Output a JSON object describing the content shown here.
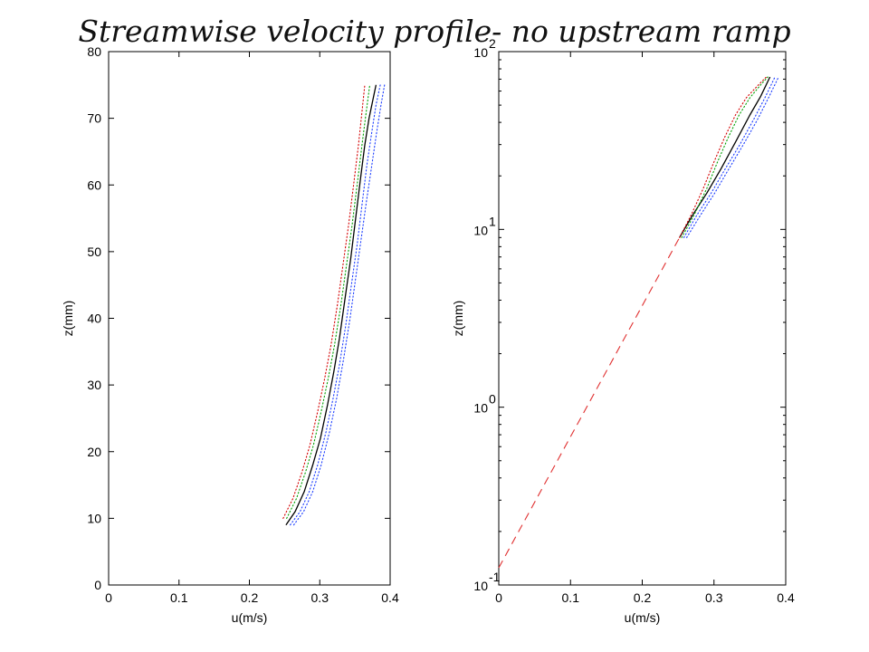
{
  "title": "Streamwise velocity profile- no upstream ramp",
  "colors": {
    "mean": "#000000",
    "upper_bound": "#d40000",
    "mid_bound": "#00a000",
    "lower_bound": "#1a3cff",
    "fit": "#e03030"
  },
  "chart_data": [
    {
      "type": "line",
      "xlabel": "u(m/s)",
      "ylabel": "z(mm)",
      "xlim": [
        0,
        0.4
      ],
      "ylim": [
        0,
        80
      ],
      "xticks": [
        "0",
        "0.1",
        "0.2",
        "0.3",
        "0.4"
      ],
      "yticks": [
        "0",
        "10",
        "20",
        "30",
        "40",
        "50",
        "60",
        "70",
        "80"
      ],
      "yscale": "linear",
      "grid": false,
      "series": [
        {
          "style": "solid",
          "color_key": "mean",
          "points": [
            [
              0.252,
              9
            ],
            [
              0.265,
              11
            ],
            [
              0.278,
              14
            ],
            [
              0.29,
              18
            ],
            [
              0.301,
              22
            ],
            [
              0.311,
              27
            ],
            [
              0.32,
              32
            ],
            [
              0.328,
              37
            ],
            [
              0.336,
              43
            ],
            [
              0.344,
              49
            ],
            [
              0.351,
              55
            ],
            [
              0.358,
              61
            ],
            [
              0.364,
              66
            ],
            [
              0.37,
              70
            ],
            [
              0.376,
              73
            ],
            [
              0.38,
              75
            ]
          ]
        },
        {
          "style": "dotted",
          "color_key": "upper_bound",
          "points": [
            [
              0.248,
              10
            ],
            [
              0.262,
              13
            ],
            [
              0.275,
              17
            ],
            [
              0.286,
              21
            ],
            [
              0.297,
              26
            ],
            [
              0.307,
              31
            ],
            [
              0.316,
              36
            ],
            [
              0.325,
              42
            ],
            [
              0.333,
              48
            ],
            [
              0.341,
              54
            ],
            [
              0.348,
              60
            ],
            [
              0.355,
              66
            ],
            [
              0.36,
              71
            ],
            [
              0.364,
              75
            ]
          ]
        },
        {
          "style": "dotted",
          "color_key": "mid_bound",
          "points": [
            [
              0.253,
              10
            ],
            [
              0.267,
              13
            ],
            [
              0.28,
              17
            ],
            [
              0.291,
              21
            ],
            [
              0.302,
              26
            ],
            [
              0.312,
              31
            ],
            [
              0.321,
              36
            ],
            [
              0.33,
              42
            ],
            [
              0.338,
              48
            ],
            [
              0.346,
              54
            ],
            [
              0.353,
              60
            ],
            [
              0.36,
              66
            ],
            [
              0.366,
              71
            ],
            [
              0.371,
              75
            ]
          ]
        },
        {
          "style": "dotted",
          "color_key": "lower_bound",
          "points": [
            [
              0.258,
              9
            ],
            [
              0.272,
              11
            ],
            [
              0.285,
              14
            ],
            [
              0.297,
              18
            ],
            [
              0.309,
              23
            ],
            [
              0.319,
              28
            ],
            [
              0.328,
              33
            ],
            [
              0.337,
              39
            ],
            [
              0.345,
              45
            ],
            [
              0.353,
              51
            ],
            [
              0.36,
              57
            ],
            [
              0.367,
              63
            ],
            [
              0.374,
              68
            ],
            [
              0.38,
              72
            ],
            [
              0.386,
              75
            ]
          ]
        },
        {
          "style": "dotted",
          "color_key": "lower_bound",
          "points": [
            [
              0.263,
              9
            ],
            [
              0.277,
              11
            ],
            [
              0.29,
              14
            ],
            [
              0.302,
              18
            ],
            [
              0.314,
              23
            ],
            [
              0.324,
              28
            ],
            [
              0.334,
              34
            ],
            [
              0.343,
              40
            ],
            [
              0.351,
              46
            ],
            [
              0.359,
              52
            ],
            [
              0.367,
              58
            ],
            [
              0.374,
              63
            ],
            [
              0.381,
              68
            ],
            [
              0.387,
              72
            ],
            [
              0.392,
              75
            ]
          ]
        }
      ]
    },
    {
      "type": "line",
      "xlabel": "u(m/s)",
      "ylabel": "z(mm)",
      "xlim": [
        0,
        0.4
      ],
      "ylim": [
        0.1,
        100
      ],
      "xticks": [
        "0",
        "0.1",
        "0.2",
        "0.3",
        "0.4"
      ],
      "yticks": [
        {
          "base": "10",
          "exp": "-1"
        },
        {
          "base": "10",
          "exp": "0"
        },
        {
          "base": "10",
          "exp": "1"
        },
        {
          "base": "10",
          "exp": "2"
        }
      ],
      "yscale": "log",
      "grid": false,
      "series": [
        {
          "style": "dashed",
          "color_key": "fit",
          "points": [
            [
              0,
              0.125
            ],
            [
              0.252,
              9
            ]
          ]
        },
        {
          "style": "solid",
          "color_key": "mean",
          "points": [
            [
              0.252,
              9
            ],
            [
              0.27,
              12
            ],
            [
              0.29,
              16
            ],
            [
              0.31,
              22
            ],
            [
              0.33,
              31
            ],
            [
              0.35,
              44
            ],
            [
              0.365,
              56
            ],
            [
              0.378,
              72
            ]
          ]
        },
        {
          "style": "dotted",
          "color_key": "upper_bound",
          "points": [
            [
              0.252,
              9
            ],
            [
              0.268,
              12
            ],
            [
              0.285,
              17
            ],
            [
              0.3,
              24
            ],
            [
              0.315,
              33
            ],
            [
              0.33,
              44
            ],
            [
              0.345,
              55
            ],
            [
              0.362,
              65
            ],
            [
              0.373,
              72
            ]
          ]
        },
        {
          "style": "dotted",
          "color_key": "mid_bound",
          "points": [
            [
              0.255,
              9
            ],
            [
              0.272,
              12
            ],
            [
              0.29,
              17
            ],
            [
              0.305,
              24
            ],
            [
              0.32,
              33
            ],
            [
              0.335,
              44
            ],
            [
              0.35,
              55
            ],
            [
              0.365,
              65
            ],
            [
              0.375,
              72
            ]
          ]
        },
        {
          "style": "dotted",
          "color_key": "lower_bound",
          "points": [
            [
              0.258,
              9
            ],
            [
              0.276,
              12
            ],
            [
              0.296,
              16
            ],
            [
              0.316,
              22
            ],
            [
              0.336,
              30
            ],
            [
              0.356,
              42
            ],
            [
              0.372,
              56
            ],
            [
              0.385,
              72
            ]
          ]
        },
        {
          "style": "dotted",
          "color_key": "lower_bound",
          "points": [
            [
              0.262,
              9
            ],
            [
              0.281,
              12
            ],
            [
              0.301,
              16
            ],
            [
              0.321,
              22
            ],
            [
              0.341,
              30
            ],
            [
              0.36,
              41
            ],
            [
              0.376,
              55
            ],
            [
              0.39,
              72
            ]
          ]
        }
      ]
    }
  ]
}
